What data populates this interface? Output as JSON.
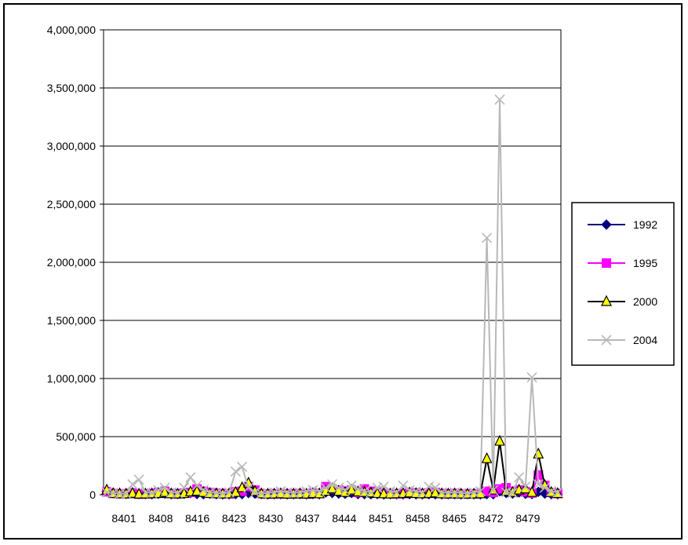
{
  "chart_data": {
    "type": "line",
    "title": "",
    "xlabel": "",
    "ylabel": "",
    "ylim": [
      0,
      4000000
    ],
    "yticks": [
      0,
      500000,
      1000000,
      1500000,
      2000000,
      2500000,
      3000000,
      3500000,
      4000000
    ],
    "ytick_labels": [
      "0",
      "500,000",
      "1,000,000",
      "1,500,000",
      "2,000,000",
      "2,500,000",
      "3,000,000",
      "3,500,000",
      "4,000,000"
    ],
    "xtick_labels": [
      "8401",
      "8408",
      "8416",
      "8423",
      "8430",
      "8437",
      "8444",
      "8451",
      "8458",
      "8465",
      "8472",
      "8479"
    ],
    "grid": "horizontal",
    "legend": "right",
    "series": [
      {
        "name": "1992",
        "color": "#000080",
        "marker": "diamond",
        "values": [
          30000,
          15000,
          10000,
          8000,
          12000,
          6000,
          5000,
          4000,
          8000,
          10000,
          5000,
          6000,
          8000,
          15000,
          6000,
          4000,
          10000,
          5000,
          3000,
          4000,
          6000,
          5000,
          15000,
          10000,
          6000,
          3000,
          4000,
          5000,
          3000,
          4000,
          5000,
          3000,
          6000,
          4000,
          20000,
          15000,
          10000,
          8000,
          15000,
          6000,
          5000,
          4000,
          6000,
          3000,
          5000,
          4000,
          3000,
          5000,
          4000,
          3000,
          5000,
          4000,
          3000,
          5000,
          4000,
          3000,
          6000,
          4000,
          3000,
          5000,
          4000,
          30000,
          15000,
          10000,
          20000,
          8000,
          6000,
          25000,
          10000,
          5000,
          4000
        ]
      },
      {
        "name": "1995",
        "color": "#ff00ff",
        "marker": "square",
        "values": [
          25000,
          12000,
          8000,
          10000,
          15000,
          5000,
          8000,
          10000,
          20000,
          30000,
          10000,
          8000,
          15000,
          20000,
          50000,
          30000,
          20000,
          15000,
          10000,
          8000,
          25000,
          30000,
          70000,
          40000,
          10000,
          6000,
          8000,
          10000,
          6000,
          8000,
          10000,
          6000,
          15000,
          10000,
          70000,
          50000,
          40000,
          30000,
          40000,
          20000,
          50000,
          30000,
          20000,
          15000,
          10000,
          8000,
          10000,
          20000,
          15000,
          10000,
          15000,
          20000,
          10000,
          8000,
          10000,
          8000,
          6000,
          8000,
          10000,
          30000,
          20000,
          50000,
          60000,
          30000,
          40000,
          25000,
          15000,
          170000,
          80000,
          20000,
          10000
        ]
      },
      {
        "name": "2000",
        "color": "#000000",
        "fill": "#ffff00",
        "marker": "triangle",
        "values": [
          40000,
          10000,
          8000,
          6000,
          12000,
          5000,
          6000,
          8000,
          10000,
          20000,
          8000,
          6000,
          10000,
          25000,
          30000,
          20000,
          10000,
          8000,
          6000,
          8000,
          20000,
          60000,
          100000,
          30000,
          8000,
          5000,
          6000,
          8000,
          5000,
          6000,
          8000,
          5000,
          10000,
          8000,
          30000,
          50000,
          30000,
          20000,
          40000,
          25000,
          20000,
          15000,
          10000,
          8000,
          6000,
          8000,
          10000,
          15000,
          10000,
          8000,
          10000,
          15000,
          8000,
          6000,
          8000,
          6000,
          5000,
          6000,
          8000,
          310000,
          40000,
          460000,
          30000,
          20000,
          40000,
          50000,
          20000,
          350000,
          80000,
          20000,
          10000
        ]
      },
      {
        "name": "2004",
        "color": "#b8b8b8",
        "marker": "x",
        "values": [
          20000,
          15000,
          10000,
          8000,
          90000,
          130000,
          20000,
          15000,
          40000,
          60000,
          20000,
          15000,
          60000,
          150000,
          80000,
          40000,
          20000,
          15000,
          10000,
          20000,
          200000,
          240000,
          60000,
          20000,
          10000,
          15000,
          20000,
          30000,
          20000,
          15000,
          20000,
          30000,
          40000,
          30000,
          60000,
          90000,
          60000,
          40000,
          80000,
          50000,
          30000,
          20000,
          60000,
          70000,
          30000,
          20000,
          80000,
          40000,
          30000,
          20000,
          70000,
          60000,
          20000,
          15000,
          20000,
          15000,
          10000,
          20000,
          30000,
          2210000,
          40000,
          3400000,
          20000,
          15000,
          150000,
          70000,
          1010000,
          90000,
          60000,
          30000,
          20000
        ]
      }
    ]
  }
}
